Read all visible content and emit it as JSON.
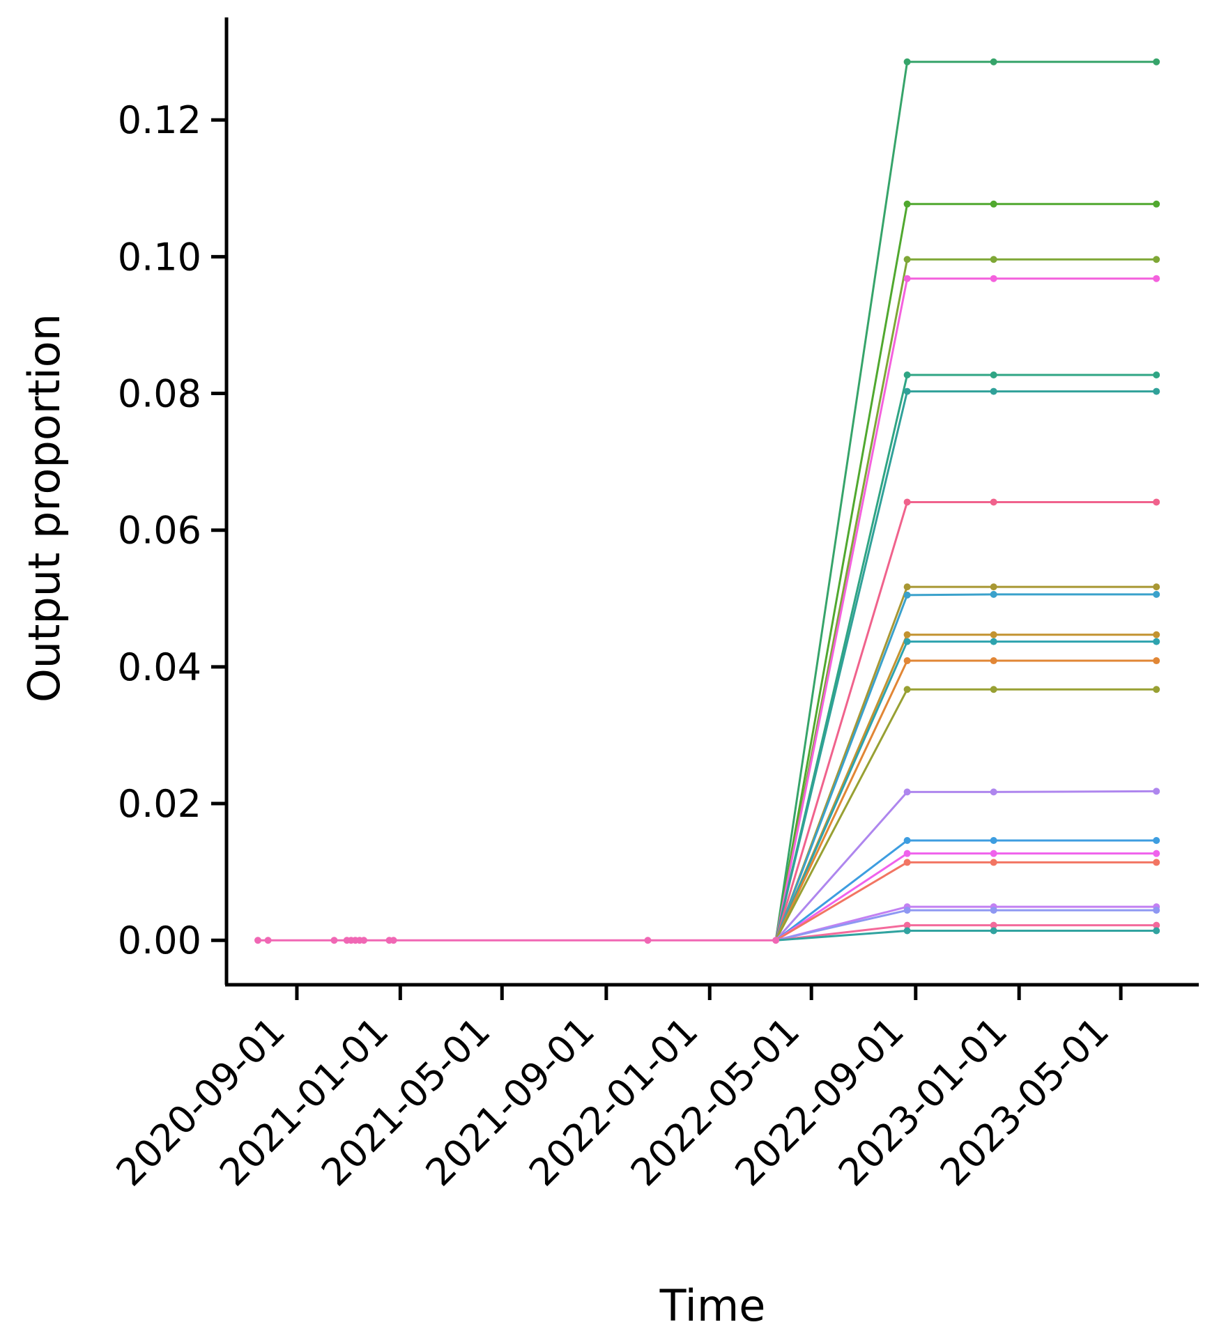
{
  "chart_data": {
    "type": "line",
    "title": "",
    "xlabel": "Time",
    "ylabel": "Output proportion",
    "x_axis": {
      "type": "date",
      "ticks": [
        "2020-09-01",
        "2021-01-01",
        "2021-05-01",
        "2021-09-01",
        "2022-01-01",
        "2022-05-01",
        "2022-09-01",
        "2023-01-01",
        "2023-05-01"
      ],
      "range": [
        "2020-06-10",
        "2023-08-01"
      ]
    },
    "y_axis": {
      "ticks": [
        0.0,
        0.02,
        0.04,
        0.06,
        0.08,
        0.1,
        0.12
      ],
      "tick_labels": [
        "0.00",
        "0.02",
        "0.04",
        "0.06",
        "0.08",
        "0.10",
        "0.12"
      ],
      "range": [
        -0.0065,
        0.135
      ]
    },
    "grid": false,
    "legend": "none",
    "marker": "circle",
    "zero_points": [
      "2020-07-17",
      "2020-07-29",
      "2020-10-15",
      "2020-10-30",
      "2020-11-04",
      "2020-11-09",
      "2020-11-14",
      "2020-11-19",
      "2020-12-19",
      "2020-12-24",
      "2021-10-20",
      "2022-03-20"
    ],
    "late_x": [
      "2022-08-22",
      "2022-12-02",
      "2023-06-12"
    ],
    "series": [
      {
        "color": "#36a46a",
        "values": [
          0.1285,
          0.1285,
          0.1285
        ]
      },
      {
        "color": "#50a82f",
        "values": [
          0.1077,
          0.1077,
          0.1077
        ]
      },
      {
        "color": "#7ea736",
        "values": [
          0.0996,
          0.0996,
          0.0996
        ]
      },
      {
        "color": "#f461dd",
        "values": [
          0.0968,
          0.0968,
          0.0968
        ]
      },
      {
        "color": "#2fa584",
        "values": [
          0.0827,
          0.0827,
          0.0827
        ]
      },
      {
        "color": "#30a199",
        "values": [
          0.0803,
          0.0803,
          0.0803
        ]
      },
      {
        "color": "#f0628c",
        "values": [
          0.0641,
          0.0641,
          0.0641
        ]
      },
      {
        "color": "#a89733",
        "values": [
          0.0517,
          0.0517,
          0.0517
        ]
      },
      {
        "color": "#3aa1cb",
        "values": [
          0.0505,
          0.0506,
          0.0506
        ]
      },
      {
        "color": "#c39330",
        "values": [
          0.0447,
          0.0447,
          0.0447
        ]
      },
      {
        "color": "#2ea3ae",
        "values": [
          0.0437,
          0.0437,
          0.0437
        ]
      },
      {
        "color": "#e18635",
        "values": [
          0.0409,
          0.0409,
          0.0409
        ]
      },
      {
        "color": "#98a033",
        "values": [
          0.0367,
          0.0367,
          0.0367
        ]
      },
      {
        "color": "#ae86ee",
        "values": [
          0.0217,
          0.0217,
          0.0218
        ]
      },
      {
        "color": "#3d9de0",
        "values": [
          0.0146,
          0.0146,
          0.0146
        ]
      },
      {
        "color": "#ef62ec",
        "values": [
          0.0127,
          0.0127,
          0.0127
        ]
      },
      {
        "color": "#f27563",
        "values": [
          0.0114,
          0.0114,
          0.0114
        ]
      },
      {
        "color": "#c280f2",
        "values": [
          0.0049,
          0.0049,
          0.0049
        ]
      },
      {
        "color": "#8e97f2",
        "values": [
          0.0044,
          0.0044,
          0.0044
        ]
      },
      {
        "color": "#f46a9b",
        "values": [
          0.0022,
          0.0022,
          0.0022
        ]
      },
      {
        "color": "#31a3a0",
        "values": [
          0.0014,
          0.0014,
          0.0014
        ]
      }
    ],
    "zero_line_color": "#f067b4"
  }
}
